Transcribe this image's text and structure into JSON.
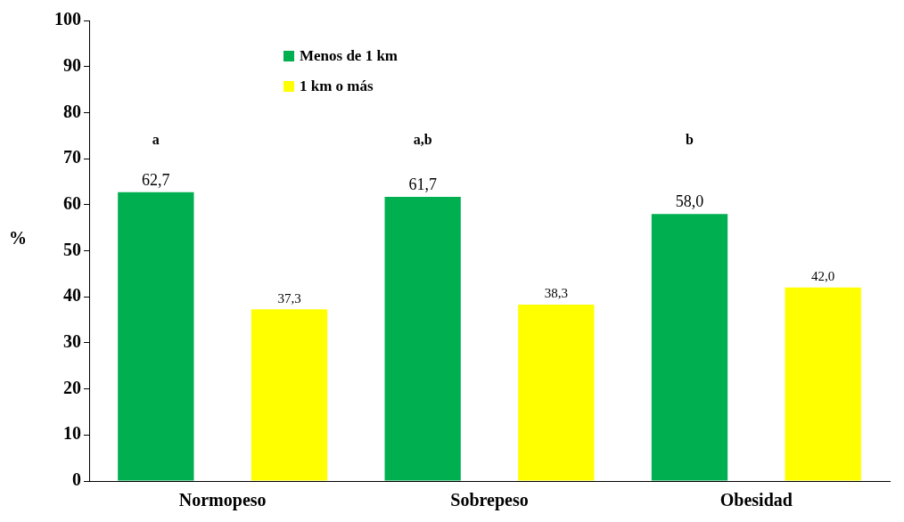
{
  "chart_data": {
    "type": "bar",
    "ylabel": "%",
    "categories": [
      "Normopeso",
      "Sobrepeso",
      "Obesidad"
    ],
    "series": [
      {
        "name": "Menos de 1 km",
        "color": "#00b050",
        "values": [
          62.7,
          61.7,
          58.0
        ],
        "value_labels": [
          "62,7",
          "61,7",
          "58,0"
        ]
      },
      {
        "name": "1 km o más",
        "color": "#ffff00",
        "values": [
          37.3,
          38.3,
          42.0
        ],
        "value_labels": [
          "37,3",
          "38,3",
          "42,0"
        ]
      }
    ],
    "ylim": [
      0,
      100
    ],
    "yticks": [
      0,
      10,
      20,
      30,
      40,
      50,
      60,
      70,
      80,
      90,
      100
    ],
    "grid": false,
    "legend": "top left",
    "annotations": [
      "a",
      "a,b",
      "b"
    ]
  }
}
